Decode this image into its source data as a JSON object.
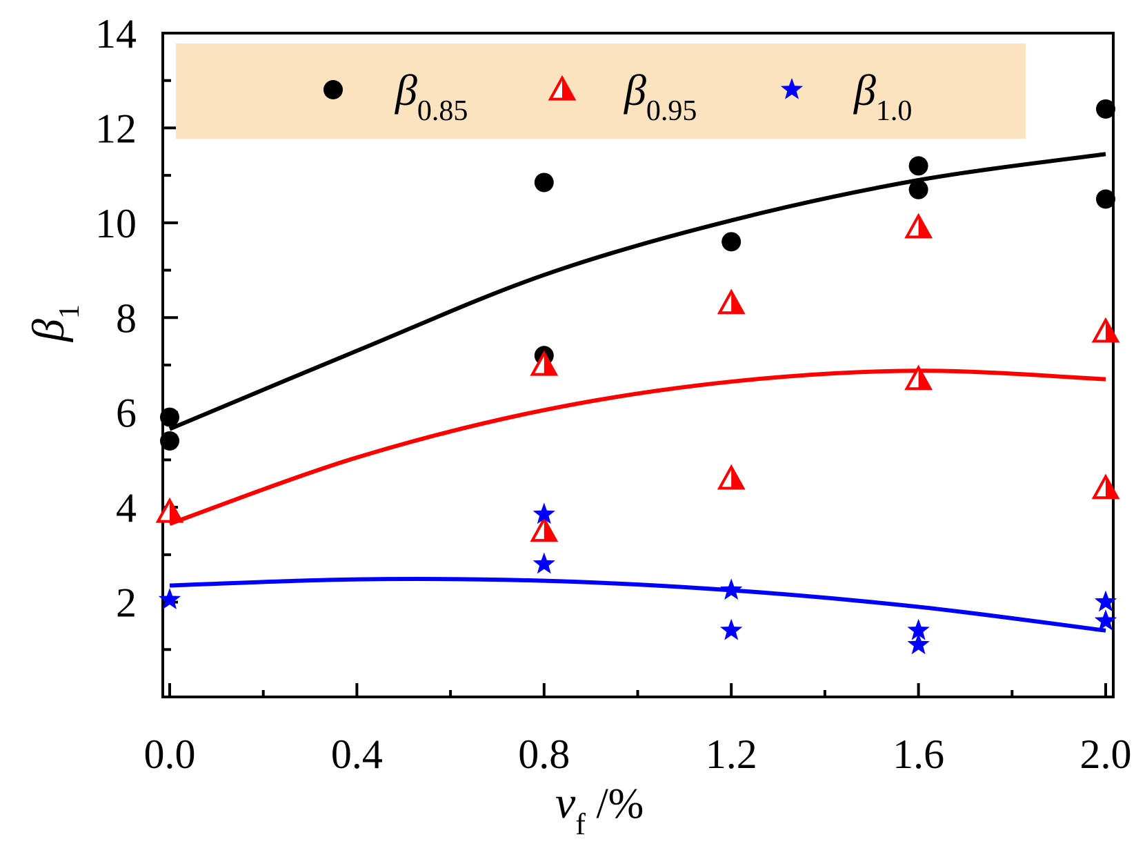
{
  "chart_data": {
    "type": "scatter",
    "xlabel": "v",
    "xlabel_subscript": "f",
    "xlabel_unit": " /%",
    "ylabel": "β",
    "ylabel_subscript": "1",
    "xlim": [
      0.0,
      2.0
    ],
    "ylim": [
      0,
      14
    ],
    "xticks": [
      0.0,
      0.4,
      0.8,
      1.2,
      1.6,
      2.0
    ],
    "xtick_labels": [
      "0.0",
      "0.4",
      "0.8",
      "1.2",
      "1.6",
      "2.0"
    ],
    "yticks": [
      2,
      4,
      6,
      8,
      10,
      12,
      14
    ],
    "ytick_labels": [
      "2",
      "4",
      "6",
      "8",
      "10",
      "12",
      "14"
    ],
    "legend_bg": "#FAE3BE",
    "series": [
      {
        "name": "β",
        "name_subscript": "0.85",
        "marker": "circle",
        "color": "#000000",
        "points": [
          [
            0.0,
            5.9
          ],
          [
            0.0,
            5.4
          ],
          [
            0.8,
            10.85
          ],
          [
            0.8,
            7.2
          ],
          [
            1.2,
            9.6
          ],
          [
            1.6,
            11.2
          ],
          [
            1.6,
            10.7
          ],
          [
            2.0,
            12.4
          ],
          [
            2.0,
            10.5
          ]
        ],
        "fit": [
          [
            0.0,
            5.65
          ],
          [
            0.4,
            7.3
          ],
          [
            0.8,
            8.9
          ],
          [
            1.2,
            10.05
          ],
          [
            1.6,
            10.9
          ],
          [
            2.0,
            11.45
          ]
        ],
        "fit_color": "#000000"
      },
      {
        "name": "β",
        "name_subscript": "0.95",
        "marker": "triangle",
        "color": "#FF0000",
        "points": [
          [
            0.0,
            3.9
          ],
          [
            0.8,
            7.0
          ],
          [
            0.8,
            3.5
          ],
          [
            1.2,
            8.3
          ],
          [
            1.2,
            4.6
          ],
          [
            1.6,
            9.9
          ],
          [
            1.6,
            6.7
          ],
          [
            2.0,
            7.7
          ],
          [
            2.0,
            4.4
          ]
        ],
        "fit": [
          [
            0.0,
            3.65
          ],
          [
            0.4,
            5.05
          ],
          [
            0.8,
            6.05
          ],
          [
            1.2,
            6.65
          ],
          [
            1.6,
            6.88
          ],
          [
            2.0,
            6.7
          ]
        ],
        "fit_color": "#FF0000"
      },
      {
        "name": "β",
        "name_subscript": "1.0",
        "marker": "star",
        "color": "#0000FF",
        "points": [
          [
            0.0,
            2.05
          ],
          [
            0.8,
            3.85
          ],
          [
            0.8,
            2.8
          ],
          [
            1.2,
            2.25
          ],
          [
            1.2,
            1.4
          ],
          [
            1.6,
            1.4
          ],
          [
            1.6,
            1.1
          ],
          [
            2.0,
            2.0
          ],
          [
            2.0,
            1.6
          ]
        ],
        "fit": [
          [
            0.0,
            2.35
          ],
          [
            0.4,
            2.48
          ],
          [
            0.8,
            2.45
          ],
          [
            1.2,
            2.25
          ],
          [
            1.6,
            1.9
          ],
          [
            2.0,
            1.4
          ]
        ],
        "fit_color": "#0000FF"
      }
    ]
  }
}
